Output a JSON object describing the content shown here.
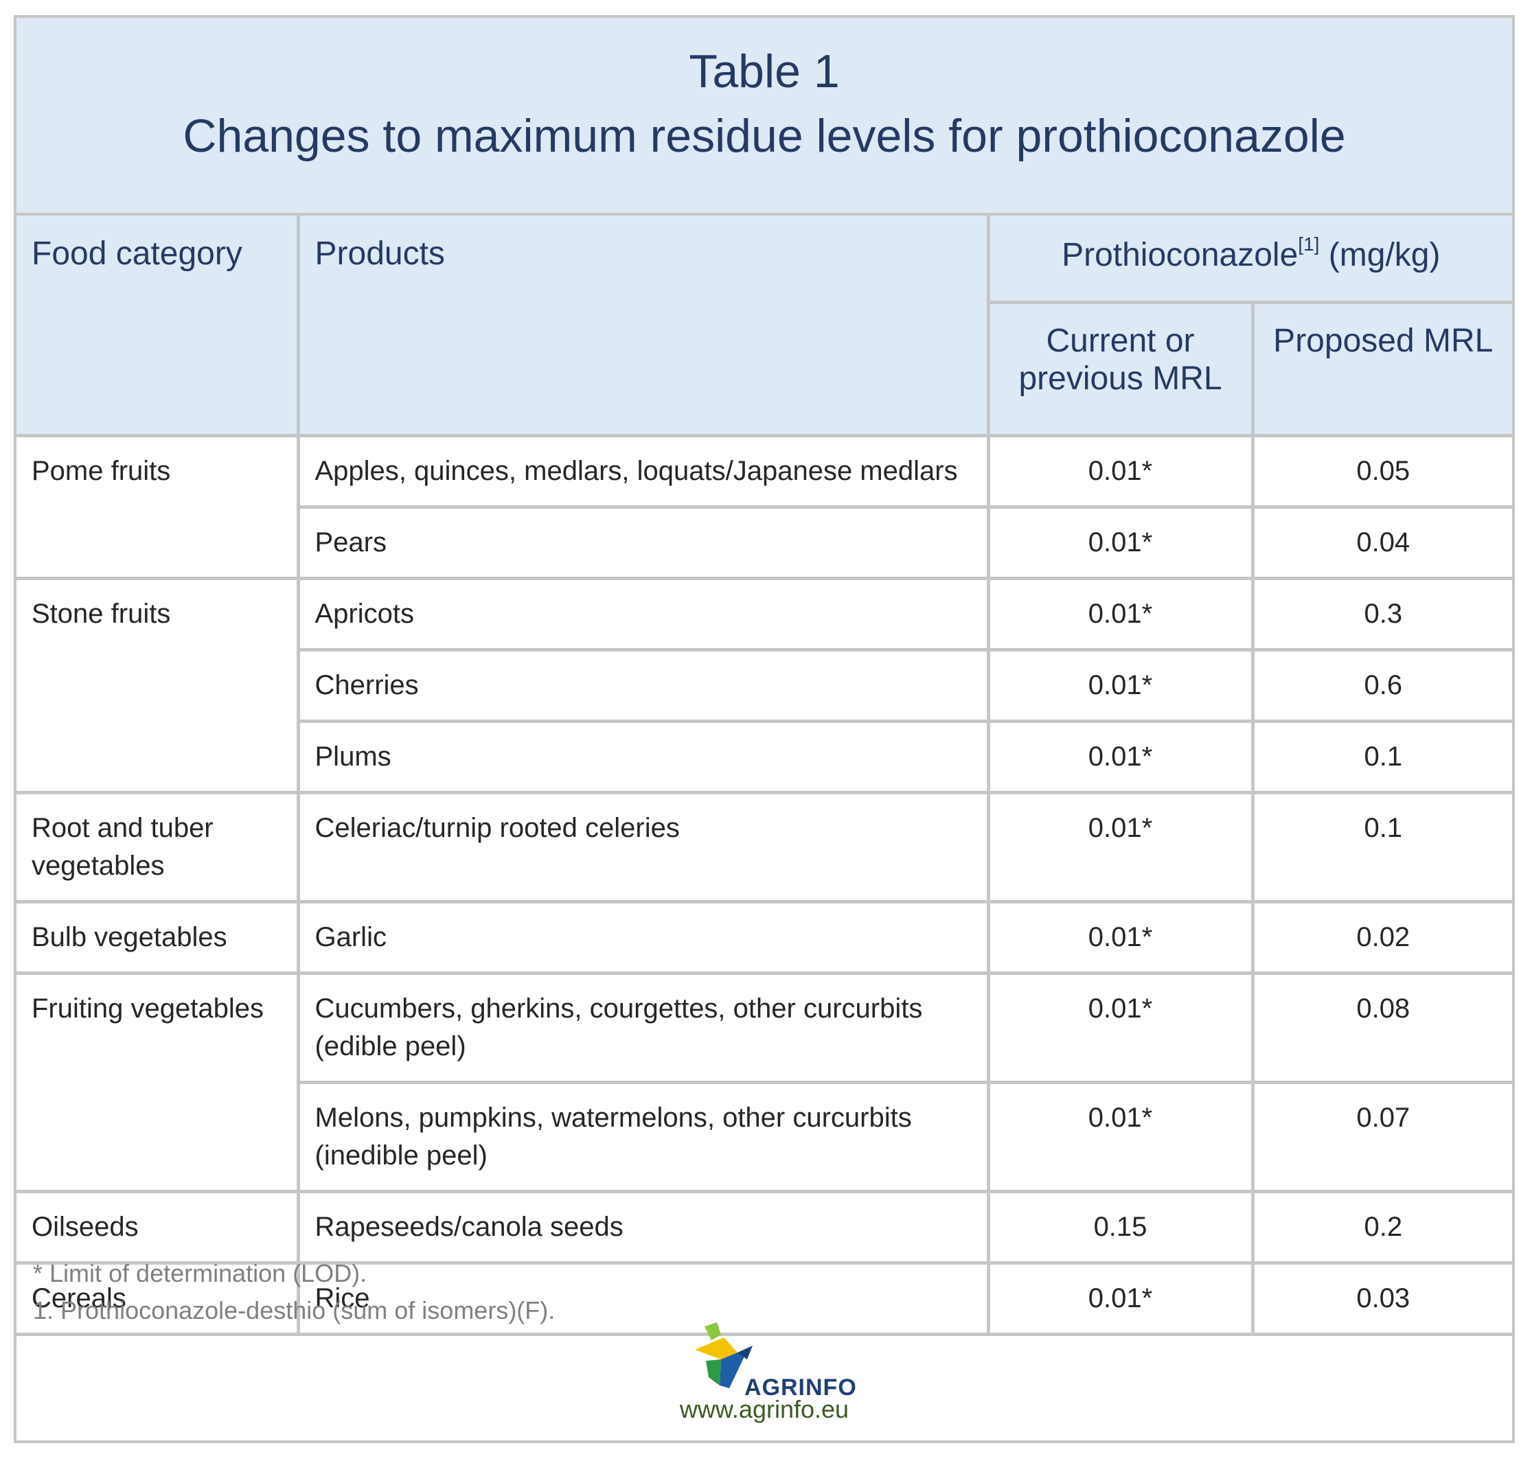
{
  "title": {
    "line1": "Table 1",
    "line2": "Changes to maximum residue levels for prothioconazole"
  },
  "header": {
    "food_category": "Food category",
    "products": "Products",
    "group_label": "Prothioconazole",
    "group_sup": "[1]",
    "group_unit": " (mg/kg)",
    "current_line1": "Current or",
    "current_line2": "previous MRL",
    "proposed": "Proposed MRL"
  },
  "rows": [
    {
      "category": "Pome fruits",
      "product": "Apples, quinces, medlars, loquats/Japanese medlars",
      "current": "0.01*",
      "proposed": "0.05"
    },
    {
      "category": "",
      "product": "Pears",
      "current": "0.01*",
      "proposed": "0.04"
    },
    {
      "category": "Stone fruits",
      "product": "Apricots",
      "current": "0.01*",
      "proposed": "0.3"
    },
    {
      "category": "",
      "product": "Cherries",
      "current": "0.01*",
      "proposed": "0.6"
    },
    {
      "category": "",
      "product": "Plums",
      "current": "0.01*",
      "proposed": "0.1"
    },
    {
      "category": "Root and tuber vegetables",
      "product": "Celeriac/turnip rooted celeries",
      "current": "0.01*",
      "proposed": "0.1"
    },
    {
      "category": "Bulb vegetables",
      "product": "Garlic",
      "current": "0.01*",
      "proposed": "0.02"
    },
    {
      "category": "Fruiting vegetables",
      "product": "Cucumbers, gherkins, courgettes, other curcurbits (edible peel)",
      "current": "0.01*",
      "proposed": "0.08"
    },
    {
      "category": "",
      "product": "Melons, pumpkins, watermelons, other curcurbits (inedible peel)",
      "current": "0.01*",
      "proposed": "0.07"
    },
    {
      "category": "Oilseeds",
      "product": "Rapeseeds/canola seeds",
      "current": "0.15",
      "proposed": "0.2"
    },
    {
      "category": "Cereals",
      "product": "Rice",
      "current": "0.01*",
      "proposed": "0.03"
    }
  ],
  "notes": {
    "note1": "* Limit of determination (LOD).",
    "note2": "1. Prothioconazole-desthio (sum of isomers)(F)."
  },
  "logo": {
    "name": "AGRINFO",
    "url": "www.agrinfo.eu"
  },
  "colors": {
    "header_bg": "#dde9f5",
    "title_text": "#243a63",
    "border": "#c6c6c6",
    "note_text": "#808080"
  }
}
